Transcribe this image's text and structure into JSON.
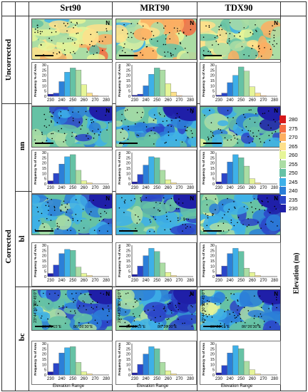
{
  "columns": [
    "Srt90",
    "MRT90",
    "TDX90"
  ],
  "rows": {
    "uncorrected": "Uncorrected",
    "corrected": "Corrected",
    "sub": [
      "nn",
      "bl",
      "bc"
    ]
  },
  "legend": {
    "title": "Elevation (m)",
    "levels": [
      "280",
      "275",
      "270",
      "265",
      "260",
      "255",
      "250",
      "245",
      "240",
      "235",
      "230"
    ],
    "colors": [
      "#d7191c",
      "#f46d43",
      "#fdae61",
      "#fee08b",
      "#e6f598",
      "#abdda4",
      "#66c2a5",
      "#3eb0e8",
      "#2c7fd8",
      "#2b45c8",
      "#1f1fa8"
    ]
  },
  "hist_common": {
    "ylabel": "Frequency % of Area",
    "yticks": [
      "0",
      "5",
      "10",
      "15",
      "20",
      "25",
      "30"
    ],
    "xticks": [
      "230",
      "240",
      "250",
      "260",
      "270",
      "280"
    ],
    "xlabel": "Elevation Range",
    "bin_colors": [
      "#1f1fa8",
      "#2b45c8",
      "#2c7fd8",
      "#3eb0e8",
      "#66c2a5",
      "#abdda4",
      "#e6f598",
      "#fee08b",
      "#fdae61",
      "#f46d43",
      "#d7191c"
    ]
  },
  "map_labels": {
    "lat1": "23°45'0\"N",
    "lat2": "23°44'30\"N",
    "lon1": "86°26'15\"E",
    "lon2": "86°26'30\"E",
    "north": "N"
  },
  "chart_data": [
    {
      "name": "uncorrected-srt90",
      "type": "bar",
      "categories": [
        "230",
        "235",
        "240",
        "245",
        "250",
        "255",
        "260",
        "265",
        "270",
        "275",
        "280"
      ],
      "values": [
        2,
        3,
        14,
        23,
        27,
        25,
        11,
        3,
        0.5,
        0,
        0
      ],
      "ylim": [
        0,
        30
      ]
    },
    {
      "name": "uncorrected-mrt90",
      "type": "bar",
      "categories": [
        "230",
        "235",
        "240",
        "245",
        "250",
        "255",
        "260",
        "265",
        "270",
        "275",
        "280"
      ],
      "values": [
        1,
        2,
        10,
        21,
        27,
        25,
        12,
        4,
        0.5,
        0,
        0
      ],
      "ylim": [
        0,
        30
      ]
    },
    {
      "name": "uncorrected-tdx90",
      "type": "bar",
      "categories": [
        "230",
        "235",
        "240",
        "245",
        "250",
        "255",
        "260",
        "265",
        "270",
        "275",
        "280"
      ],
      "values": [
        1,
        3,
        13,
        20,
        28,
        24,
        9,
        3,
        0.5,
        0,
        0
      ],
      "ylim": [
        0,
        30
      ]
    },
    {
      "name": "nn-srt90",
      "type": "bar",
      "categories": [
        "230",
        "235",
        "240",
        "245",
        "250",
        "255",
        "260",
        "265",
        "270",
        "275",
        "280"
      ],
      "values": [
        3,
        10,
        19,
        26,
        28,
        13,
        3,
        1,
        0,
        0,
        0
      ],
      "ylim": [
        0,
        30
      ]
    },
    {
      "name": "nn-mrt90",
      "type": "bar",
      "categories": [
        "230",
        "235",
        "240",
        "245",
        "250",
        "255",
        "260",
        "265",
        "270",
        "275",
        "280"
      ],
      "values": [
        2,
        9,
        18,
        26,
        25,
        13,
        4,
        1,
        0,
        0,
        0
      ],
      "ylim": [
        0,
        30
      ]
    },
    {
      "name": "nn-tdx90",
      "type": "bar",
      "categories": [
        "230",
        "235",
        "240",
        "245",
        "250",
        "255",
        "260",
        "265",
        "270",
        "275",
        "280"
      ],
      "values": [
        2,
        10,
        21,
        28,
        25,
        17,
        5,
        1,
        0,
        0,
        0
      ],
      "ylim": [
        0,
        30
      ]
    },
    {
      "name": "bl-srt90",
      "type": "bar",
      "categories": [
        "230",
        "235",
        "240",
        "245",
        "250",
        "255",
        "260",
        "265",
        "270",
        "275",
        "280"
      ],
      "values": [
        3,
        11,
        22,
        26,
        25,
        9,
        3,
        1,
        0,
        0,
        0
      ],
      "ylim": [
        0,
        30
      ]
    },
    {
      "name": "bl-mrt90",
      "type": "bar",
      "categories": [
        "230",
        "235",
        "240",
        "245",
        "250",
        "255",
        "260",
        "265",
        "270",
        "275",
        "280"
      ],
      "values": [
        2,
        10,
        20,
        27,
        24,
        13,
        4,
        1,
        0,
        0,
        0
      ],
      "ylim": [
        0,
        30
      ]
    },
    {
      "name": "bl-tdx90",
      "type": "bar",
      "categories": [
        "230",
        "235",
        "240",
        "245",
        "250",
        "255",
        "260",
        "265",
        "270",
        "275",
        "280"
      ],
      "values": [
        2,
        10,
        22,
        27,
        24,
        8,
        4,
        1,
        0,
        0,
        0
      ],
      "ylim": [
        0,
        30
      ]
    },
    {
      "name": "bc-srt90",
      "type": "bar",
      "categories": [
        "230",
        "235",
        "240",
        "245",
        "250",
        "255",
        "260",
        "265",
        "270",
        "275",
        "280"
      ],
      "values": [
        3,
        11,
        21,
        26,
        27,
        12,
        3,
        1,
        0,
        0,
        0
      ],
      "ylim": [
        0,
        30
      ]
    },
    {
      "name": "bc-mrt90",
      "type": "bar",
      "categories": [
        "230",
        "235",
        "240",
        "245",
        "250",
        "255",
        "260",
        "265",
        "270",
        "275",
        "280"
      ],
      "values": [
        2,
        10,
        20,
        27,
        25,
        12,
        4,
        1,
        0,
        0,
        0
      ],
      "ylim": [
        0,
        30
      ]
    },
    {
      "name": "bc-tdx90",
      "type": "bar",
      "categories": [
        "230",
        "235",
        "240",
        "245",
        "250",
        "255",
        "260",
        "265",
        "270",
        "275",
        "280"
      ],
      "values": [
        2,
        9,
        21,
        28,
        25,
        13,
        5,
        1,
        0,
        0,
        0
      ],
      "ylim": [
        0,
        30
      ]
    }
  ]
}
